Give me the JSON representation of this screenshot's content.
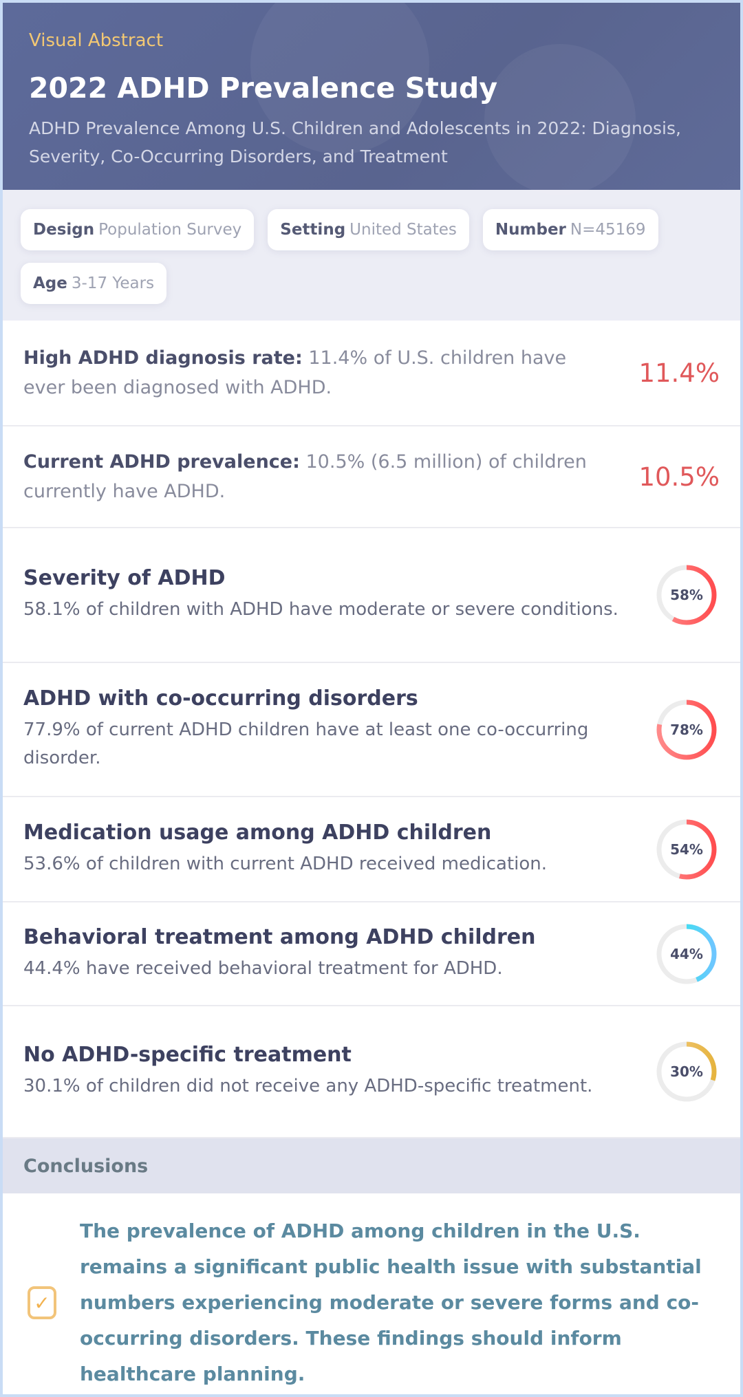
{
  "header": {
    "kicker": "Visual Abstract",
    "title": "2022 ADHD Prevalence Study",
    "subtitle": "ADHD Prevalence Among U.S. Children and Adolescents in 2022: Diagnosis, Severity, Co-Occurring Disorders, and Treatment"
  },
  "tags": [
    {
      "label": "Design",
      "value": "Population Survey"
    },
    {
      "label": "Setting",
      "value": "United States"
    },
    {
      "label": "Number",
      "value": "N=45169"
    },
    {
      "label": "Age",
      "value": "3-17 Years"
    }
  ],
  "stats": [
    {
      "label": "High ADHD diagnosis rate:",
      "text": "11.4% of U.S. children have ever been diagnosed with ADHD.",
      "value": "11.4%"
    },
    {
      "label": "Current ADHD prevalence:",
      "text": "10.5% (6.5 million) of children currently have ADHD.",
      "value": "10.5%"
    }
  ],
  "findings": [
    {
      "title": "Severity of ADHD",
      "text": "58.1% of children with ADHD have moderate or severe conditions.",
      "percent": 58,
      "label": "58%",
      "color": "#ff4d4f",
      "color2": "#ff8a8a"
    },
    {
      "title": "ADHD with co-occurring disorders",
      "text": "77.9% of current ADHD children have at least one co-occurring disorder.",
      "percent": 78,
      "label": "78%",
      "color": "#ff4d4f",
      "color2": "#ff8a8a"
    },
    {
      "title": "Medication usage among ADHD children",
      "text": "53.6% of children with current ADHD received medication.",
      "percent": 54,
      "label": "54%",
      "color": "#ff4d4f",
      "color2": "#ff8a8a"
    },
    {
      "title": "Behavioral treatment among ADHD children",
      "text": "44.4% have received behavioral treatment for ADHD.",
      "percent": 44,
      "label": "44%",
      "color": "#6ec6ff",
      "color2": "#1ef0e6"
    },
    {
      "title": "No ADHD-specific treatment",
      "text": "30.1% of children did not receive any ADHD-specific treatment.",
      "percent": 30,
      "label": "30%",
      "color": "#e6b440",
      "color2": "#f3cc85"
    }
  ],
  "conclusions": {
    "heading": "Conclusions",
    "icon": "check-square-icon",
    "text": "The prevalence of ADHD among children in the U.S. remains a significant public health issue with substantial numbers experiencing moderate or severe forms and co-occurring disorders. These findings should inform healthcare planning."
  }
}
